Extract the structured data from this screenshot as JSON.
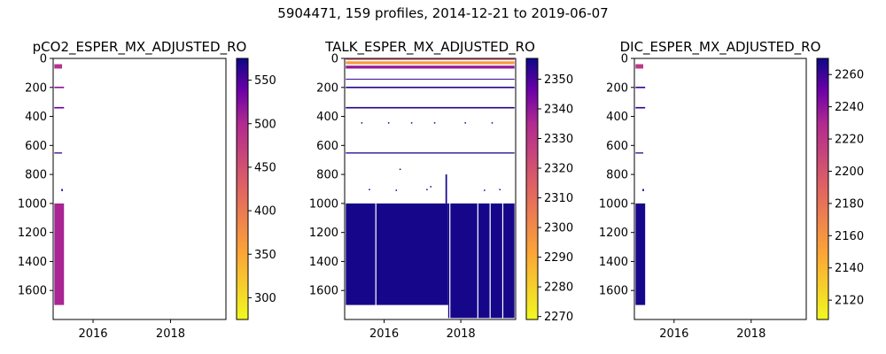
{
  "suptitle": "5904471, 159 profiles, 2014-12-21 to 2019-06-07",
  "chart_data": [
    {
      "type": "heatmap",
      "title": "pCO2_ESPER_MX_ADJUSTED_RO",
      "colormap": "plasma_r",
      "xlim": [
        2014.97,
        2019.43
      ],
      "ylim": [
        1800,
        0
      ],
      "xticks": [
        "2016",
        "2018"
      ],
      "xtick_values": [
        2016,
        2018
      ],
      "yticks": [
        "0",
        "200",
        "400",
        "600",
        "800",
        "1000",
        "1200",
        "1400",
        "1600"
      ],
      "ytick_values": [
        0,
        200,
        400,
        600,
        800,
        1000,
        1200,
        1400,
        1600
      ],
      "colorbar": {
        "min": 275,
        "max": 575,
        "ticks": [
          "300",
          "350",
          "400",
          "450",
          "500",
          "550"
        ],
        "tick_values": [
          300,
          350,
          400,
          450,
          500,
          550
        ]
      },
      "blocks": [
        {
          "x0": 2015.0,
          "x1": 2015.25,
          "d0": 1000,
          "d1": 1700,
          "value": 505
        },
        {
          "x0": 2015.0,
          "x1": 2015.2,
          "d0": 40,
          "d1": 70,
          "value": 490
        },
        {
          "x0": 2015.0,
          "x1": 2015.25,
          "d0": 195,
          "d1": 205,
          "value": 520
        },
        {
          "x0": 2015.0,
          "x1": 2015.25,
          "d0": 335,
          "d1": 345,
          "value": 540
        },
        {
          "x0": 2015.0,
          "x1": 2015.2,
          "d0": 648,
          "d1": 656,
          "value": 560
        },
        {
          "x0": 2015.18,
          "x1": 2015.22,
          "d0": 900,
          "d1": 915,
          "value": 560
        }
      ]
    },
    {
      "type": "heatmap",
      "title": "TALK_ESPER_MX_ADJUSTED_RO",
      "colormap": "plasma_r",
      "xlim": [
        2014.97,
        2019.43
      ],
      "ylim": [
        1800,
        0
      ],
      "xticks": [
        "2016",
        "2018"
      ],
      "xtick_values": [
        2016,
        2018
      ],
      "yticks": [
        "0",
        "200",
        "400",
        "600",
        "800",
        "1000",
        "1200",
        "1400",
        "1600"
      ],
      "ytick_values": [
        0,
        200,
        400,
        600,
        800,
        1000,
        1200,
        1400,
        1600
      ],
      "colorbar": {
        "min": 2269,
        "max": 2357,
        "ticks": [
          "2270",
          "2280",
          "2290",
          "2300",
          "2310",
          "2320",
          "2330",
          "2340",
          "2350"
        ],
        "tick_values": [
          2270,
          2280,
          2290,
          2300,
          2310,
          2320,
          2330,
          2340,
          2350
        ]
      },
      "blocks": [
        {
          "x0": 2015.0,
          "x1": 2017.67,
          "d0": 1000,
          "d1": 1700,
          "value": 2356
        },
        {
          "x0": 2017.67,
          "x1": 2019.4,
          "d0": 1000,
          "d1": 1790,
          "value": 2356
        },
        {
          "x0": 2015.0,
          "x1": 2019.4,
          "d0": 0,
          "d1": 10,
          "value": 2320
        },
        {
          "x0": 2015.0,
          "x1": 2019.4,
          "d0": 20,
          "d1": 40,
          "value": 2295
        },
        {
          "x0": 2015.0,
          "x1": 2019.4,
          "d0": 50,
          "d1": 70,
          "value": 2340
        },
        {
          "x0": 2015.0,
          "x1": 2019.4,
          "d0": 140,
          "d1": 146,
          "value": 2352
        },
        {
          "x0": 2015.0,
          "x1": 2019.4,
          "d0": 195,
          "d1": 205,
          "value": 2354
        },
        {
          "x0": 2015.0,
          "x1": 2019.4,
          "d0": 335,
          "d1": 345,
          "value": 2354
        },
        {
          "x0": 2015.0,
          "x1": 2019.4,
          "d0": 648,
          "d1": 656,
          "value": 2355
        },
        {
          "x0": 2017.6,
          "x1": 2017.64,
          "d0": 800,
          "d1": 1000,
          "value": 2356
        }
      ]
    },
    {
      "type": "heatmap",
      "title": "DIC_ESPER_MX_ADJUSTED_RO",
      "colormap": "plasma_r",
      "xlim": [
        2014.97,
        2019.43
      ],
      "ylim": [
        1800,
        0
      ],
      "xticks": [
        "2016",
        "2018"
      ],
      "xtick_values": [
        2016,
        2018
      ],
      "yticks": [
        "0",
        "200",
        "400",
        "600",
        "800",
        "1000",
        "1200",
        "1400",
        "1600"
      ],
      "ytick_values": [
        0,
        200,
        400,
        600,
        800,
        1000,
        1200,
        1400,
        1600
      ],
      "colorbar": {
        "min": 2108,
        "max": 2270,
        "ticks": [
          "2120",
          "2140",
          "2160",
          "2180",
          "2200",
          "2220",
          "2240",
          "2260"
        ],
        "tick_values": [
          2120,
          2140,
          2160,
          2180,
          2200,
          2220,
          2240,
          2260
        ]
      },
      "blocks": [
        {
          "x0": 2015.0,
          "x1": 2015.25,
          "d0": 1000,
          "d1": 1700,
          "value": 2268
        },
        {
          "x0": 2015.0,
          "x1": 2015.2,
          "d0": 40,
          "d1": 70,
          "value": 2220
        },
        {
          "x0": 2015.0,
          "x1": 2015.25,
          "d0": 195,
          "d1": 205,
          "value": 2262
        },
        {
          "x0": 2015.0,
          "x1": 2015.25,
          "d0": 335,
          "d1": 345,
          "value": 2262
        },
        {
          "x0": 2015.0,
          "x1": 2015.2,
          "d0": 648,
          "d1": 656,
          "value": 2265
        },
        {
          "x0": 2015.18,
          "x1": 2015.22,
          "d0": 900,
          "d1": 915,
          "value": 2265
        }
      ]
    }
  ]
}
